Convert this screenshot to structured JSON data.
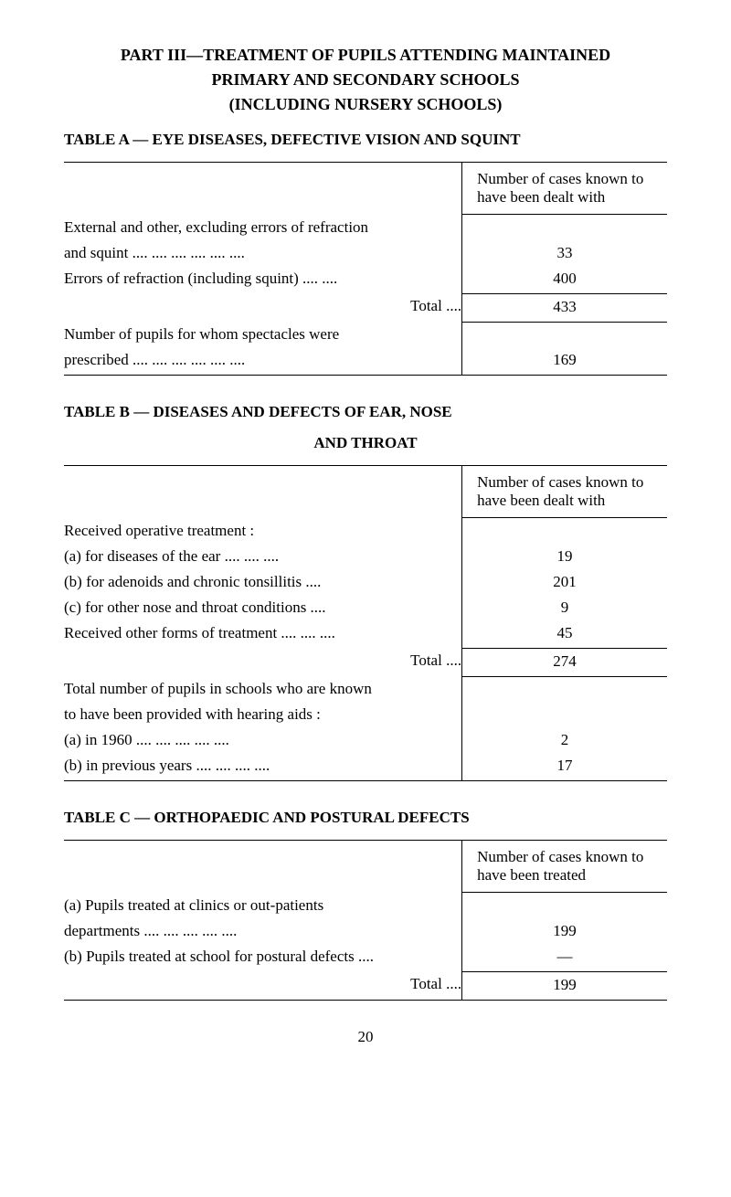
{
  "part_title_line1": "PART III—TREATMENT OF PUPILS ATTENDING MAINTAINED",
  "part_title_line2": "PRIMARY AND SECONDARY SCHOOLS",
  "part_title_line3": "(INCLUDING NURSERY SCHOOLS)",
  "tableA": {
    "heading": "TABLE A — EYE DISEASES, DEFECTIVE VISION AND SQUINT",
    "col_header": "Number of cases known to have been dealt with",
    "rows": {
      "r1_desc_line1": "External and other, excluding errors of refraction",
      "r1_desc_line2": "and squint .... .... .... .... .... ....",
      "r1_val": "33",
      "r2_desc": "Errors of refraction (including squint) .... ....",
      "r2_val": "400",
      "total_label": "Total ....",
      "total_val": "433",
      "r3_desc_line1": "Number of pupils for whom spectacles were",
      "r3_desc_line2": "prescribed .... .... .... .... .... ....",
      "r3_val": "169"
    }
  },
  "tableB": {
    "heading": "TABLE B — DISEASES AND DEFECTS OF EAR, NOSE",
    "subheading": "AND THROAT",
    "col_header": "Number of cases known to have been dealt with",
    "rows": {
      "r1_desc": "Received operative treatment :",
      "r1a_desc": "(a) for diseases of the ear .... .... ....",
      "r1a_val": "19",
      "r1b_desc": "(b) for adenoids and chronic tonsillitis ....",
      "r1b_val": "201",
      "r1c_desc": "(c) for other nose and throat conditions ....",
      "r1c_val": "9",
      "r2_desc": "Received other forms of treatment .... .... ....",
      "r2_val": "45",
      "total_label": "Total ....",
      "total_val": "274",
      "r3_desc_line1": "Total number of pupils in schools who are known",
      "r3_desc_line2": "to have been provided with hearing aids :",
      "r3a_desc": "(a) in 1960 .... .... .... .... ....",
      "r3a_val": "2",
      "r3b_desc": "(b) in previous years .... .... .... ....",
      "r3b_val": "17"
    }
  },
  "tableC": {
    "heading": "TABLE C — ORTHOPAEDIC AND POSTURAL DEFECTS",
    "col_header": "Number of cases known to have been treated",
    "rows": {
      "ra_desc_line1": "(a) Pupils treated at clinics or out-patients",
      "ra_desc_line2": "departments .... .... .... .... ....",
      "ra_val": "199",
      "rb_desc": "(b) Pupils treated at school for postural defects ....",
      "rb_val": "—",
      "total_label": "Total ....",
      "total_val": "199"
    }
  },
  "page_number": "20"
}
